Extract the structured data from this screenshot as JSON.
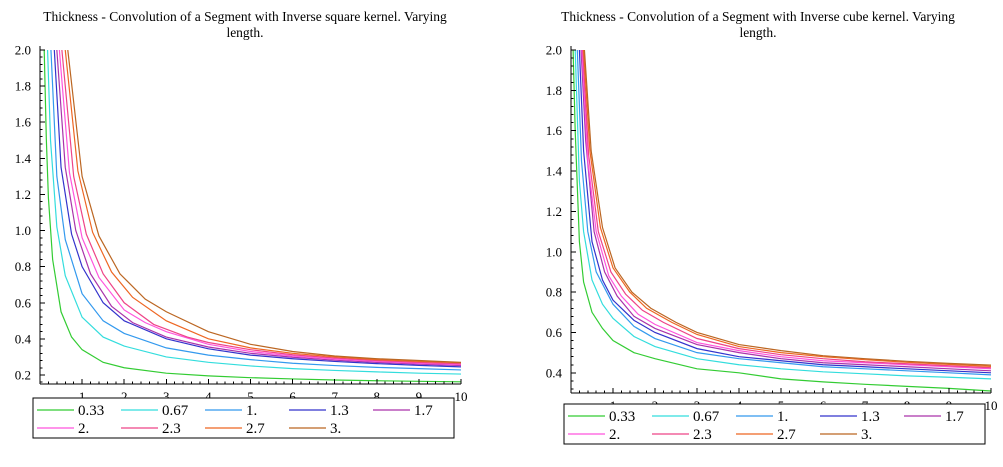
{
  "chart_data": [
    {
      "type": "line",
      "title_line1": "Thickness - Convolution of a Segment with Inverse square kernel. Varying",
      "title_line2": "length.",
      "xlabel": "",
      "ylabel": "",
      "xlim": [
        0,
        10
      ],
      "ylim": [
        0.15,
        2.0
      ],
      "xticks": [
        1,
        2,
        3,
        4,
        5,
        6,
        7,
        8,
        9,
        10
      ],
      "yticks": [
        0.2,
        0.4,
        0.6,
        0.8,
        1.0,
        1.2,
        1.4,
        1.6,
        1.8,
        2.0
      ],
      "ytick_labels": [
        "0.2",
        "0.4",
        "0.6",
        "0.8",
        "1.0",
        "1.2",
        "1.4",
        "1.6",
        "1.8",
        "2.0"
      ],
      "legend": "bottom",
      "grid": false,
      "series": [
        {
          "name": "0.33",
          "color": "#33cc33",
          "x": [
            0.1,
            0.15,
            0.2,
            0.3,
            0.5,
            0.75,
            1,
            1.5,
            2,
            3,
            4,
            5,
            6,
            7,
            8,
            9,
            10
          ],
          "y": [
            2.0,
            1.51,
            1.18,
            0.84,
            0.55,
            0.41,
            0.34,
            0.27,
            0.24,
            0.21,
            0.195,
            0.185,
            0.178,
            0.172,
            0.168,
            0.165,
            0.162
          ]
        },
        {
          "name": "0.67",
          "color": "#33dddd",
          "x": [
            0.18,
            0.25,
            0.4,
            0.6,
            1,
            1.5,
            2,
            3,
            4,
            5,
            6,
            7,
            8,
            9,
            10
          ],
          "y": [
            2.0,
            1.5,
            1.02,
            0.75,
            0.52,
            0.41,
            0.36,
            0.3,
            0.27,
            0.25,
            0.235,
            0.225,
            0.217,
            0.21,
            0.205
          ]
        },
        {
          "name": "1.",
          "color": "#3399ee",
          "x": [
            0.26,
            0.4,
            0.6,
            1,
            1.5,
            2,
            3,
            4,
            5,
            6,
            7,
            8,
            9,
            10
          ],
          "y": [
            2.0,
            1.3,
            0.95,
            0.65,
            0.5,
            0.43,
            0.35,
            0.31,
            0.285,
            0.265,
            0.252,
            0.242,
            0.235,
            0.228
          ]
        },
        {
          "name": "1.3",
          "color": "#3333cc",
          "x": [
            0.34,
            0.5,
            0.75,
            1,
            1.5,
            2,
            3,
            4,
            5,
            6,
            7,
            8,
            9,
            10
          ],
          "y": [
            2.0,
            1.35,
            0.98,
            0.8,
            0.6,
            0.5,
            0.4,
            0.345,
            0.31,
            0.29,
            0.275,
            0.263,
            0.253,
            0.245
          ]
        },
        {
          "name": "1.7",
          "color": "#aa33aa",
          "x": [
            0.4,
            0.6,
            0.85,
            1.2,
            1.7,
            2.2,
            3,
            4,
            5,
            6,
            7,
            8,
            9,
            10
          ],
          "y": [
            2.0,
            1.35,
            1.0,
            0.76,
            0.58,
            0.49,
            0.41,
            0.355,
            0.32,
            0.298,
            0.282,
            0.27,
            0.26,
            0.252
          ]
        },
        {
          "name": "2.",
          "color": "#ff55dd",
          "x": [
            0.46,
            0.7,
            1,
            1.4,
            2,
            2.5,
            3,
            4,
            5,
            6,
            7,
            8,
            9,
            10
          ],
          "y": [
            2.0,
            1.32,
            0.96,
            0.74,
            0.56,
            0.49,
            0.44,
            0.37,
            0.33,
            0.305,
            0.288,
            0.275,
            0.265,
            0.257
          ]
        },
        {
          "name": "2.3",
          "color": "#ee4488",
          "x": [
            0.52,
            0.8,
            1.1,
            1.5,
            2,
            2.7,
            3.5,
            4,
            5,
            6,
            7,
            8,
            9,
            10
          ],
          "y": [
            2.0,
            1.3,
            0.98,
            0.76,
            0.6,
            0.48,
            0.41,
            0.38,
            0.34,
            0.312,
            0.294,
            0.28,
            0.27,
            0.262
          ]
        },
        {
          "name": "2.7",
          "color": "#ee6622",
          "x": [
            0.6,
            0.9,
            1.25,
            1.7,
            2.2,
            3,
            4,
            5,
            6,
            7,
            8,
            9,
            10
          ],
          "y": [
            2.0,
            1.33,
            0.99,
            0.77,
            0.63,
            0.5,
            0.4,
            0.35,
            0.32,
            0.3,
            0.285,
            0.275,
            0.268
          ]
        },
        {
          "name": "3.",
          "color": "#bb6622",
          "x": [
            0.66,
            1,
            1.4,
            1.9,
            2.5,
            3,
            4,
            5,
            6,
            7,
            8,
            9,
            10
          ],
          "y": [
            2.0,
            1.3,
            0.97,
            0.76,
            0.62,
            0.55,
            0.44,
            0.37,
            0.33,
            0.305,
            0.29,
            0.28,
            0.27
          ]
        }
      ]
    },
    {
      "type": "line",
      "title_line1": "Thickness - Convolution of a Segment with Inverse cube kernel. Varying",
      "title_line2": "length.",
      "xlabel": "",
      "ylabel": "",
      "xlim": [
        0,
        10
      ],
      "ylim": [
        0.3,
        2.0
      ],
      "xticks": [
        1,
        2,
        3,
        4,
        5,
        6,
        7,
        8,
        9,
        10
      ],
      "yticks": [
        0.4,
        0.6,
        0.8,
        1.0,
        1.2,
        1.4,
        1.6,
        1.8,
        2.0
      ],
      "ytick_labels": [
        "0.4",
        "0.6",
        "0.8",
        "1.0",
        "1.2",
        "1.4",
        "1.6",
        "1.8",
        "2.0"
      ],
      "legend": "bottom",
      "grid": false,
      "series": [
        {
          "name": "0.33",
          "color": "#33cc33",
          "x": [
            0.05,
            0.1,
            0.2,
            0.3,
            0.5,
            0.75,
            1,
            1.5,
            2,
            3,
            4,
            5,
            6,
            7,
            8,
            9,
            10
          ],
          "y": [
            2.0,
            1.6,
            1.05,
            0.85,
            0.7,
            0.62,
            0.56,
            0.5,
            0.47,
            0.42,
            0.4,
            0.37,
            0.355,
            0.343,
            0.333,
            0.323,
            0.31
          ]
        },
        {
          "name": "0.67",
          "color": "#33dddd",
          "x": [
            0.1,
            0.2,
            0.3,
            0.5,
            0.75,
            1,
            1.5,
            2,
            3,
            4,
            5,
            6,
            7,
            8,
            9,
            10
          ],
          "y": [
            2.0,
            1.35,
            1.1,
            0.86,
            0.74,
            0.67,
            0.58,
            0.53,
            0.47,
            0.44,
            0.42,
            0.405,
            0.395,
            0.385,
            0.378,
            0.37
          ]
        },
        {
          "name": "1.",
          "color": "#3399ee",
          "x": [
            0.15,
            0.25,
            0.4,
            0.6,
            1,
            1.5,
            2,
            3,
            4,
            5,
            6,
            7,
            8,
            9,
            10
          ],
          "y": [
            2.0,
            1.45,
            1.1,
            0.9,
            0.74,
            0.63,
            0.57,
            0.5,
            0.47,
            0.45,
            0.43,
            0.42,
            0.41,
            0.4,
            0.39
          ]
        },
        {
          "name": "1.3",
          "color": "#3333cc",
          "x": [
            0.2,
            0.3,
            0.5,
            0.75,
            1,
            1.5,
            2,
            3,
            4,
            5,
            6,
            7,
            8,
            9,
            10
          ],
          "y": [
            2.0,
            1.5,
            1.05,
            0.86,
            0.76,
            0.66,
            0.6,
            0.52,
            0.48,
            0.46,
            0.44,
            0.43,
            0.42,
            0.41,
            0.4
          ]
        },
        {
          "name": "1.7",
          "color": "#aa33aa",
          "x": [
            0.24,
            0.35,
            0.55,
            0.8,
            1.1,
            1.5,
            2,
            3,
            4,
            5,
            6,
            7,
            8,
            9,
            10
          ],
          "y": [
            2.0,
            1.55,
            1.1,
            0.9,
            0.78,
            0.68,
            0.62,
            0.54,
            0.5,
            0.47,
            0.45,
            0.44,
            0.43,
            0.42,
            0.41
          ]
        },
        {
          "name": "2.",
          "color": "#ff55dd",
          "x": [
            0.26,
            0.4,
            0.6,
            0.9,
            1.2,
            1.6,
            2,
            3,
            4,
            5,
            6,
            7,
            8,
            9,
            10
          ],
          "y": [
            2.0,
            1.45,
            1.1,
            0.88,
            0.78,
            0.69,
            0.64,
            0.55,
            0.51,
            0.48,
            0.46,
            0.45,
            0.44,
            0.43,
            0.42
          ]
        },
        {
          "name": "2.3",
          "color": "#ee4488",
          "x": [
            0.28,
            0.42,
            0.65,
            0.95,
            1.3,
            1.7,
            2.2,
            3,
            4,
            5,
            6,
            7,
            8,
            9,
            10
          ],
          "y": [
            2.0,
            1.48,
            1.1,
            0.9,
            0.79,
            0.71,
            0.65,
            0.57,
            0.52,
            0.49,
            0.47,
            0.455,
            0.445,
            0.435,
            0.425
          ]
        },
        {
          "name": "2.7",
          "color": "#ee6622",
          "x": [
            0.3,
            0.45,
            0.7,
            1,
            1.4,
            1.8,
            2.4,
            3,
            4,
            5,
            6,
            7,
            8,
            9,
            10
          ],
          "y": [
            2.0,
            1.5,
            1.12,
            0.92,
            0.8,
            0.72,
            0.65,
            0.59,
            0.53,
            0.5,
            0.48,
            0.465,
            0.452,
            0.442,
            0.432
          ]
        },
        {
          "name": "3.",
          "color": "#bb6622",
          "x": [
            0.32,
            0.48,
            0.75,
            1.05,
            1.45,
            1.9,
            2.5,
            3,
            4,
            5,
            6,
            7,
            8,
            9,
            10
          ],
          "y": [
            2.0,
            1.5,
            1.12,
            0.92,
            0.8,
            0.72,
            0.65,
            0.6,
            0.54,
            0.51,
            0.485,
            0.47,
            0.457,
            0.447,
            0.438
          ]
        }
      ]
    }
  ]
}
